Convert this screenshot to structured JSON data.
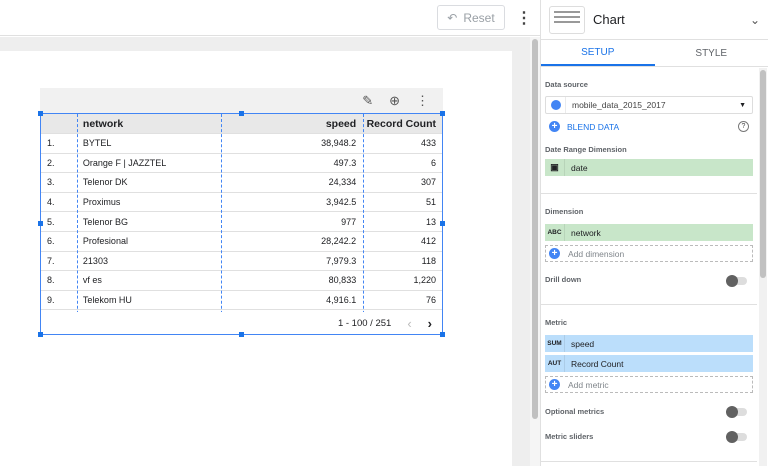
{
  "toolbar": {
    "reset_label": "Reset"
  },
  "table": {
    "headers": [
      "",
      "network",
      "speed",
      "Record Count"
    ],
    "rows": [
      [
        "1.",
        "BYTEL",
        "38,948.2",
        "433"
      ],
      [
        "2.",
        "Orange F | JAZZTEL",
        "497.3",
        "6"
      ],
      [
        "3.",
        "Telenor DK",
        "24,334",
        "307"
      ],
      [
        "4.",
        "Proximus",
        "3,942.5",
        "51"
      ],
      [
        "5.",
        "Telenor BG",
        "977",
        "13"
      ],
      [
        "6.",
        "Profesional",
        "28,242.2",
        "412"
      ],
      [
        "7.",
        "21303",
        "7,979.3",
        "118"
      ],
      [
        "8.",
        "vf es",
        "80,833",
        "1,220"
      ],
      [
        "9.",
        "Telekom HU",
        "4,916.1",
        "76"
      ]
    ],
    "pagination": "1 - 100 / 251"
  },
  "panel": {
    "title": "Chart",
    "tabs": [
      "SETUP",
      "STYLE"
    ],
    "data_source_label": "Data source",
    "data_source": "mobile_data_2015_2017",
    "blend_label": "BLEND DATA",
    "date_range_label": "Date Range Dimension",
    "date_field": "date",
    "dimension_label": "Dimension",
    "dimension": {
      "type": "ABC",
      "name": "network"
    },
    "add_dimension": "Add dimension",
    "drill_down": "Drill down",
    "metric_label": "Metric",
    "metrics": [
      {
        "type": "SUM",
        "name": "speed"
      },
      {
        "type": "AUT",
        "name": "Record Count"
      }
    ],
    "add_metric": "Add metric",
    "optional_metrics": "Optional metrics",
    "metric_sliders": "Metric sliders"
  },
  "colors": {
    "accent": "#1a73e8",
    "dimension_chip": "#c8e6c9",
    "metric_chip": "#bbdefb"
  }
}
